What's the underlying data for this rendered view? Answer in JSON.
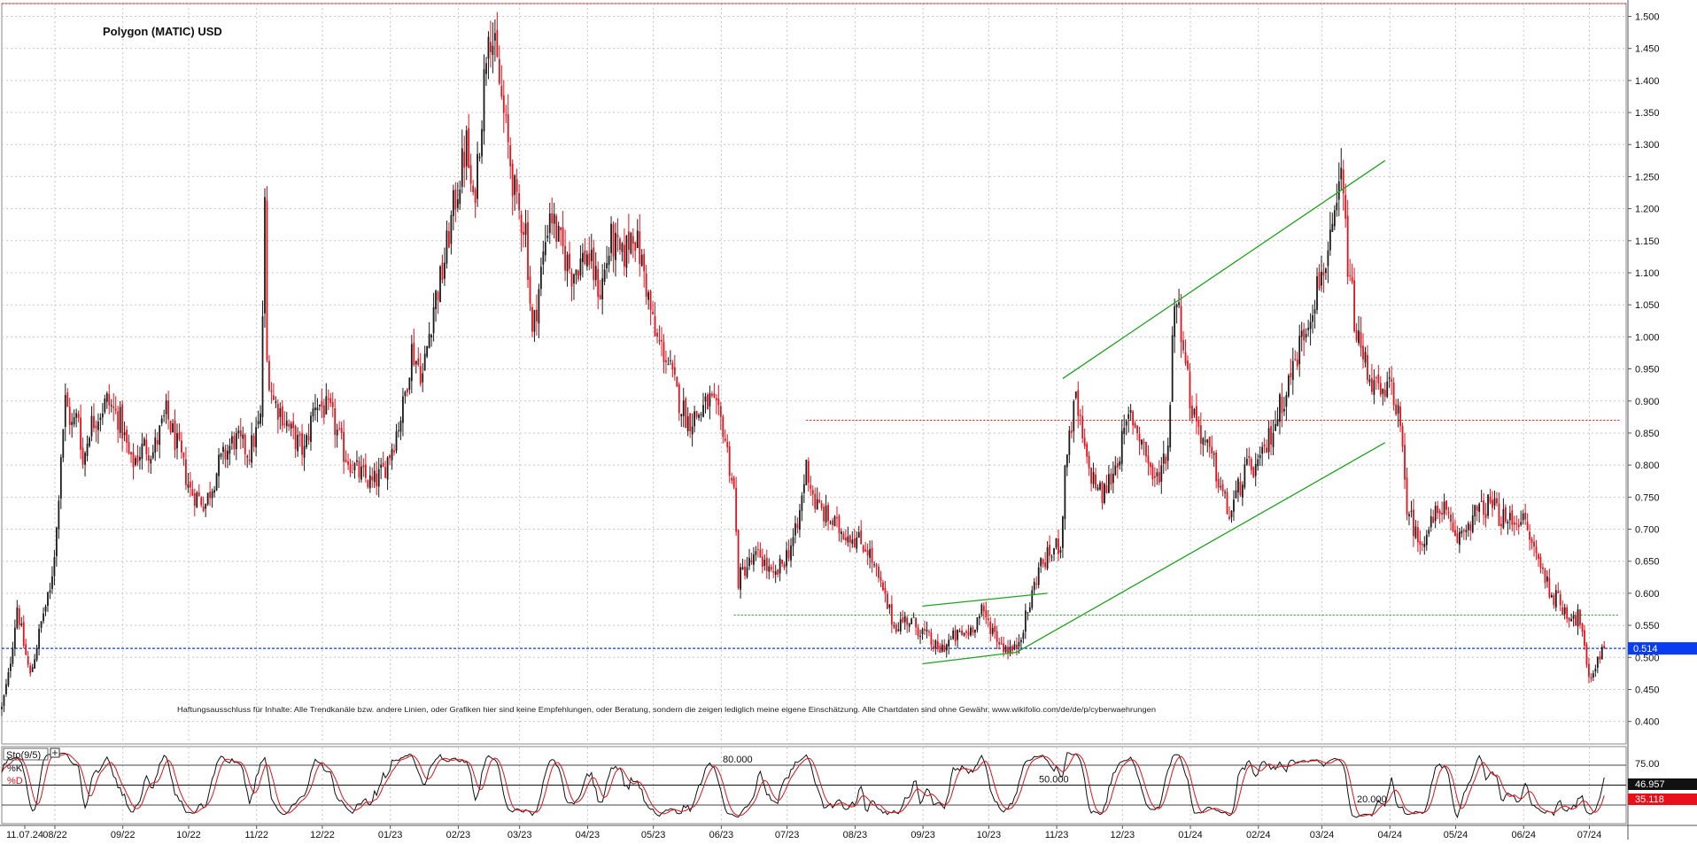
{
  "chart_data": {
    "type": "candlestick",
    "title": "Polygon (MATIC) USD",
    "disclaimer": "Haftungsausschluss für Inhalte: Alle Trendkanäle bzw. andere Linien, oder Grafiken hier sind keine Empfehlungen, oder Beratung, sondern die zeigen lediglich meine eigene Einschätzung. Alle Chartdaten sind ohne Gewähr. www.wikifolio.com/de/de/p/cyberwaehrungen",
    "x_ticks": [
      "11.07.24",
      "08/22",
      "09/22",
      "10/22",
      "11/22",
      "12/22",
      "01/23",
      "02/23",
      "03/23",
      "04/23",
      "05/23",
      "06/23",
      "07/23",
      "08/23",
      "09/23",
      "10/23",
      "11/23",
      "12/23",
      "01/24",
      "02/24",
      "03/24",
      "04/24",
      "05/24",
      "06/24",
      "07/24"
    ],
    "y_ticks": [
      "1.500",
      "1.450",
      "1.400",
      "1.350",
      "1.300",
      "1.250",
      "1.200",
      "1.150",
      "1.100",
      "1.050",
      "1.000",
      "0.950",
      "0.900",
      "0.850",
      "0.800",
      "0.750",
      "0.700",
      "0.650",
      "0.600",
      "0.550",
      "0.500",
      "0.450",
      "0.400"
    ],
    "ylim": [
      0.365,
      1.52
    ],
    "last_price": 0.514,
    "last_price_label": "0.514",
    "close_path": [
      [
        "2022-07-11",
        0.42
      ],
      [
        "2022-07-14",
        0.47
      ],
      [
        "2022-07-18",
        0.58
      ],
      [
        "2022-07-21",
        0.52
      ],
      [
        "2022-07-24",
        0.47
      ],
      [
        "2022-07-27",
        0.52
      ],
      [
        "2022-07-30",
        0.57
      ],
      [
        "2022-08-02",
        0.6
      ],
      [
        "2022-08-05",
        0.7
      ],
      [
        "2022-08-07",
        0.82
      ],
      [
        "2022-08-09",
        0.9
      ],
      [
        "2022-08-12",
        0.86
      ],
      [
        "2022-08-15",
        0.88
      ],
      [
        "2022-08-17",
        0.8
      ],
      [
        "2022-08-20",
        0.86
      ],
      [
        "2022-08-24",
        0.88
      ],
      [
        "2022-08-28",
        0.9
      ],
      [
        "2022-09-03",
        0.87
      ],
      [
        "2022-09-08",
        0.8
      ],
      [
        "2022-09-14",
        0.83
      ],
      [
        "2022-09-18",
        0.82
      ],
      [
        "2022-09-24",
        0.88
      ],
      [
        "2022-09-30",
        0.82
      ],
      [
        "2022-10-05",
        0.76
      ],
      [
        "2022-10-12",
        0.74
      ],
      [
        "2022-10-18",
        0.8
      ],
      [
        "2022-10-25",
        0.84
      ],
      [
        "2022-11-01",
        0.82
      ],
      [
        "2022-11-06",
        0.87
      ],
      [
        "2022-11-08",
        1.2
      ],
      [
        "2022-11-09",
        0.96
      ],
      [
        "2022-11-12",
        0.9
      ],
      [
        "2022-11-16",
        0.88
      ],
      [
        "2022-11-20",
        0.85
      ],
      [
        "2022-11-26",
        0.82
      ],
      [
        "2022-12-01",
        0.9
      ],
      [
        "2022-12-08",
        0.88
      ],
      [
        "2022-12-14",
        0.82
      ],
      [
        "2022-12-20",
        0.79
      ],
      [
        "2022-12-27",
        0.77
      ],
      [
        "2023-01-01",
        0.79
      ],
      [
        "2023-01-06",
        0.84
      ],
      [
        "2023-01-10",
        0.89
      ],
      [
        "2023-01-14",
        0.98
      ],
      [
        "2023-01-19",
        0.94
      ],
      [
        "2023-01-24",
        1.05
      ],
      [
        "2023-01-28",
        1.1
      ],
      [
        "2023-02-02",
        1.2
      ],
      [
        "2023-02-08",
        1.3
      ],
      [
        "2023-02-11",
        1.2
      ],
      [
        "2023-02-15",
        1.35
      ],
      [
        "2023-02-18",
        1.5
      ],
      [
        "2023-02-22",
        1.42
      ],
      [
        "2023-02-26",
        1.32
      ],
      [
        "2023-03-03",
        1.2
      ],
      [
        "2023-03-07",
        1.17
      ],
      [
        "2023-03-10",
        1.0
      ],
      [
        "2023-03-14",
        1.1
      ],
      [
        "2023-03-18",
        1.2
      ],
      [
        "2023-03-22",
        1.15
      ],
      [
        "2023-03-28",
        1.1
      ],
      [
        "2023-04-04",
        1.13
      ],
      [
        "2023-04-10",
        1.07
      ],
      [
        "2023-04-15",
        1.15
      ],
      [
        "2023-04-20",
        1.12
      ],
      [
        "2023-04-25",
        1.17
      ],
      [
        "2023-04-30",
        1.1
      ],
      [
        "2023-05-05",
        1.0
      ],
      [
        "2023-05-10",
        0.97
      ],
      [
        "2023-05-15",
        0.91
      ],
      [
        "2023-05-20",
        0.87
      ],
      [
        "2023-05-25",
        0.88
      ],
      [
        "2023-05-30",
        0.9
      ],
      [
        "2023-06-05",
        0.86
      ],
      [
        "2023-06-10",
        0.76
      ],
      [
        "2023-06-12",
        0.62
      ],
      [
        "2023-06-15",
        0.64
      ],
      [
        "2023-06-22",
        0.66
      ],
      [
        "2023-06-28",
        0.62
      ],
      [
        "2023-07-04",
        0.66
      ],
      [
        "2023-07-09",
        0.7
      ],
      [
        "2023-07-13",
        0.8
      ],
      [
        "2023-07-17",
        0.74
      ],
      [
        "2023-07-22",
        0.72
      ],
      [
        "2023-07-28",
        0.7
      ],
      [
        "2023-08-03",
        0.69
      ],
      [
        "2023-08-10",
        0.67
      ],
      [
        "2023-08-17",
        0.6
      ],
      [
        "2023-08-22",
        0.55
      ],
      [
        "2023-08-28",
        0.56
      ],
      [
        "2023-09-04",
        0.54
      ],
      [
        "2023-09-11",
        0.51
      ],
      [
        "2023-09-18",
        0.53
      ],
      [
        "2023-09-25",
        0.54
      ],
      [
        "2023-10-01",
        0.57
      ],
      [
        "2023-10-05",
        0.55
      ],
      [
        "2023-10-10",
        0.52
      ],
      [
        "2023-10-16",
        0.51
      ],
      [
        "2023-10-22",
        0.57
      ],
      [
        "2023-10-27",
        0.64
      ],
      [
        "2023-11-01",
        0.66
      ],
      [
        "2023-11-06",
        0.68
      ],
      [
        "2023-11-09",
        0.83
      ],
      [
        "2023-11-13",
        0.9
      ],
      [
        "2023-11-18",
        0.8
      ],
      [
        "2023-11-25",
        0.75
      ],
      [
        "2023-12-01",
        0.8
      ],
      [
        "2023-12-08",
        0.88
      ],
      [
        "2023-12-14",
        0.83
      ],
      [
        "2023-12-19",
        0.77
      ],
      [
        "2023-12-25",
        0.83
      ],
      [
        "2023-12-28",
        1.07
      ],
      [
        "2024-01-01",
        1.0
      ],
      [
        "2024-01-04",
        0.9
      ],
      [
        "2024-01-10",
        0.84
      ],
      [
        "2024-01-15",
        0.8
      ],
      [
        "2024-01-22",
        0.72
      ],
      [
        "2024-01-29",
        0.79
      ],
      [
        "2024-02-05",
        0.8
      ],
      [
        "2024-02-12",
        0.87
      ],
      [
        "2024-02-19",
        0.94
      ],
      [
        "2024-02-26",
        1.02
      ],
      [
        "2024-03-04",
        1.1
      ],
      [
        "2024-03-09",
        1.15
      ],
      [
        "2024-03-13",
        1.25
      ],
      [
        "2024-03-16",
        1.12
      ],
      [
        "2024-03-20",
        1.0
      ],
      [
        "2024-03-26",
        0.94
      ],
      [
        "2024-04-01",
        0.9
      ],
      [
        "2024-04-05",
        0.93
      ],
      [
        "2024-04-08",
        0.88
      ],
      [
        "2024-04-12",
        0.74
      ],
      [
        "2024-04-17",
        0.68
      ],
      [
        "2024-04-22",
        0.7
      ],
      [
        "2024-04-28",
        0.74
      ],
      [
        "2024-05-04",
        0.68
      ],
      [
        "2024-05-12",
        0.72
      ],
      [
        "2024-05-20",
        0.74
      ],
      [
        "2024-05-27",
        0.71
      ],
      [
        "2024-06-03",
        0.72
      ],
      [
        "2024-06-10",
        0.66
      ],
      [
        "2024-06-17",
        0.6
      ],
      [
        "2024-06-24",
        0.57
      ],
      [
        "2024-06-30",
        0.56
      ],
      [
        "2024-07-04",
        0.46
      ],
      [
        "2024-07-08",
        0.5
      ],
      [
        "2024-07-11",
        0.514
      ]
    ],
    "annotations": {
      "channel_upper": [
        [
          "2023-11-07",
          0.935
        ],
        [
          "2024-04-02",
          1.275
        ]
      ],
      "channel_lower": [
        [
          "2023-10-17",
          0.508
        ],
        [
          "2024-04-02",
          0.835
        ]
      ],
      "flag_upper": [
        [
          "2023-09-04",
          0.58
        ],
        [
          "2023-10-31",
          0.6
        ]
      ],
      "flag_lower": [
        [
          "2023-09-04",
          0.49
        ],
        [
          "2023-10-17",
          0.508
        ]
      ],
      "red_dotted_level": [
        [
          "2023-07-13",
          0.87
        ],
        [
          "2024-07-18",
          0.87
        ]
      ],
      "green_dotted_level": [
        [
          "2023-06-10",
          0.566
        ],
        [
          "2024-07-18",
          0.566
        ]
      ],
      "top_red_dotted_level": 1.52
    },
    "stochastic": {
      "label": "Sto(9/5)",
      "k_label": "%K",
      "d_label": "%D",
      "levels": [
        {
          "value": 80,
          "label": "80.000"
        },
        {
          "value": 50,
          "label": "50.000"
        },
        {
          "value": 20,
          "label": "20.000"
        }
      ],
      "axis_label": "75.00",
      "k_last": "46.957",
      "d_last": "35.118"
    },
    "colors": {
      "up": "#1a1a1a",
      "down": "#e8101a",
      "trend": "#1fa31f",
      "price_box": "#0a3df0",
      "grid": "#c0c0c0"
    }
  }
}
